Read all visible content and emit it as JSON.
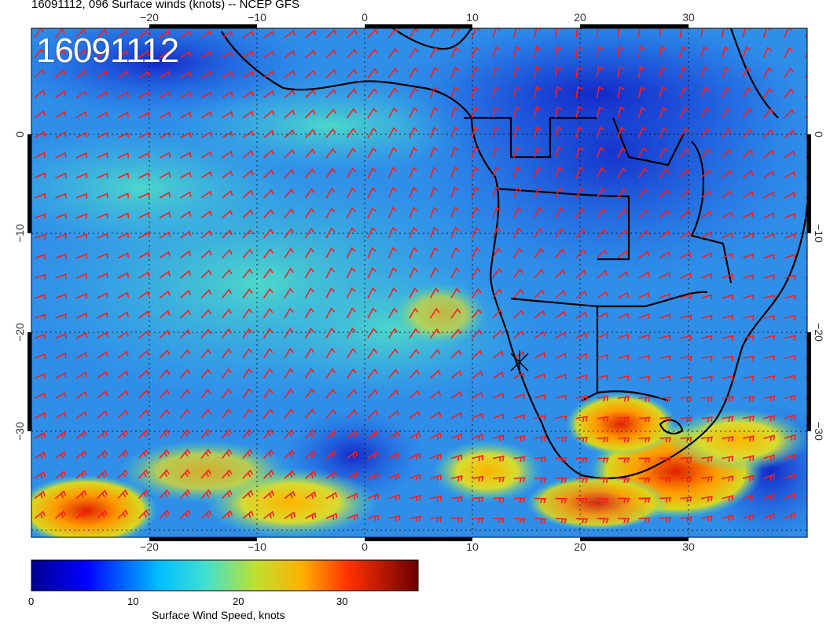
{
  "title": "16091112, 096 Surface winds (knots) -- NCEP GFS",
  "stamp": "16091112",
  "axes": {
    "lon_ticks": [
      "−20",
      "−10",
      "0",
      "10",
      "20",
      "30"
    ],
    "lat_ticks": [
      "0",
      "−10",
      "−20",
      "−30"
    ]
  },
  "colorbar": {
    "title": "Surface Wind Speed, knots",
    "labels": [
      "0",
      "10",
      "20",
      "30"
    ],
    "min": 0,
    "max": 36
  },
  "colors": {
    "barb": "#ff1a1a",
    "coast": "#000000",
    "grid": "#000000"
  }
}
